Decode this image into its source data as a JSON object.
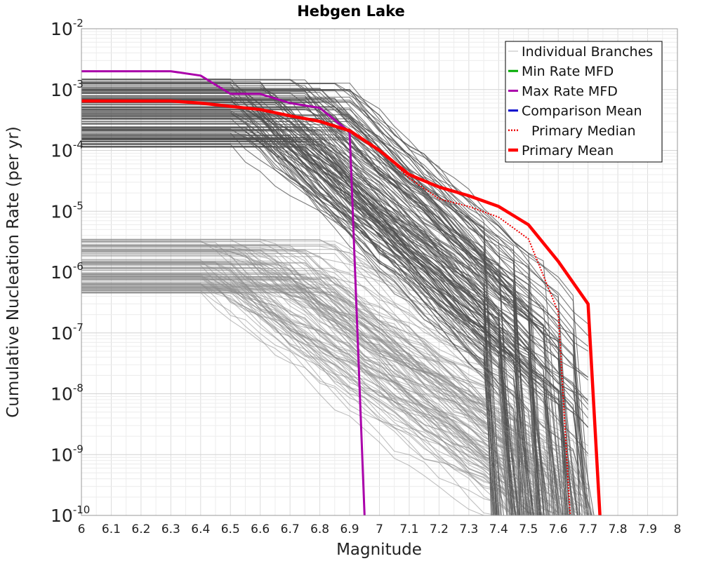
{
  "chart_data": {
    "type": "line",
    "title": "Hebgen Lake",
    "xlabel": "Magnitude",
    "ylabel": "Cumulative Nucleation Rate (per yr)",
    "x_scale": "linear",
    "y_scale": "log",
    "xlim": [
      6,
      8
    ],
    "ylim": [
      1e-10,
      0.01
    ],
    "grid": true,
    "legend_position": "top-right",
    "x_ticks": [
      "6",
      "6.1",
      "6.2",
      "6.3",
      "6.4",
      "6.5",
      "6.6",
      "6.7",
      "6.8",
      "6.9",
      "7",
      "7.1",
      "7.2",
      "7.3",
      "7.4",
      "7.5",
      "7.6",
      "7.7",
      "7.8",
      "7.9",
      "8"
    ],
    "y_ticks": [
      {
        "base": "10",
        "exp": "-2"
      },
      {
        "base": "10",
        "exp": "-3"
      },
      {
        "base": "10",
        "exp": "-4"
      },
      {
        "base": "10",
        "exp": "-5"
      },
      {
        "base": "10",
        "exp": "-6"
      },
      {
        "base": "10",
        "exp": "-7"
      },
      {
        "base": "10",
        "exp": "-8"
      },
      {
        "base": "10",
        "exp": "-9"
      },
      {
        "base": "10",
        "exp": "-10"
      }
    ],
    "legend": [
      {
        "label": "Individual Branches",
        "color": "#bbbbbb",
        "style": "solid-thin"
      },
      {
        "label": "Min Rate MFD",
        "color": "#00aa00",
        "style": "solid"
      },
      {
        "label": "Max Rate MFD",
        "color": "#aa00aa",
        "style": "solid"
      },
      {
        "label": "Comparison Mean",
        "color": "#0000cc",
        "style": "solid"
      },
      {
        "label": "Primary Median",
        "color": "#ee0000",
        "style": "dotted"
      },
      {
        "label": "Primary Mean",
        "color": "#ff0000",
        "style": "solid-thick"
      }
    ],
    "series": [
      {
        "name": "Max Rate MFD",
        "color": "#aa00aa",
        "x": [
          6.0,
          6.1,
          6.2,
          6.3,
          6.4,
          6.5,
          6.6,
          6.7,
          6.8,
          6.9,
          6.95
        ],
        "y": [
          0.002,
          0.002,
          0.002,
          0.002,
          0.0017,
          0.00085,
          0.00085,
          0.0006,
          0.0005,
          0.0002,
          1e-10
        ]
      },
      {
        "name": "Primary Median",
        "color": "#ee0000",
        "x": [
          6.0,
          6.3,
          6.6,
          6.7,
          6.8,
          6.9,
          7.0,
          7.1,
          7.2,
          7.3,
          7.4,
          7.5,
          7.6,
          7.64
        ],
        "y": [
          0.00065,
          0.00065,
          0.00047,
          0.00037,
          0.0003,
          0.00022,
          0.000105,
          3.5e-05,
          1.6e-05,
          1.2e-05,
          8e-06,
          3.5e-06,
          2.2e-07,
          1e-10
        ]
      },
      {
        "name": "Primary Mean",
        "color": "#ff0000",
        "x": [
          6.0,
          6.3,
          6.4,
          6.5,
          6.6,
          6.7,
          6.8,
          6.9,
          7.0,
          7.1,
          7.2,
          7.3,
          7.4,
          7.5,
          7.6,
          7.7,
          7.74
        ],
        "y": [
          0.00065,
          0.00065,
          0.0006,
          0.00053,
          0.00047,
          0.00037,
          0.0003,
          0.00021,
          0.0001,
          4e-05,
          2.5e-05,
          1.8e-05,
          1.2e-05,
          6e-06,
          1.5e-06,
          3e-07,
          1e-10
        ]
      }
    ]
  }
}
